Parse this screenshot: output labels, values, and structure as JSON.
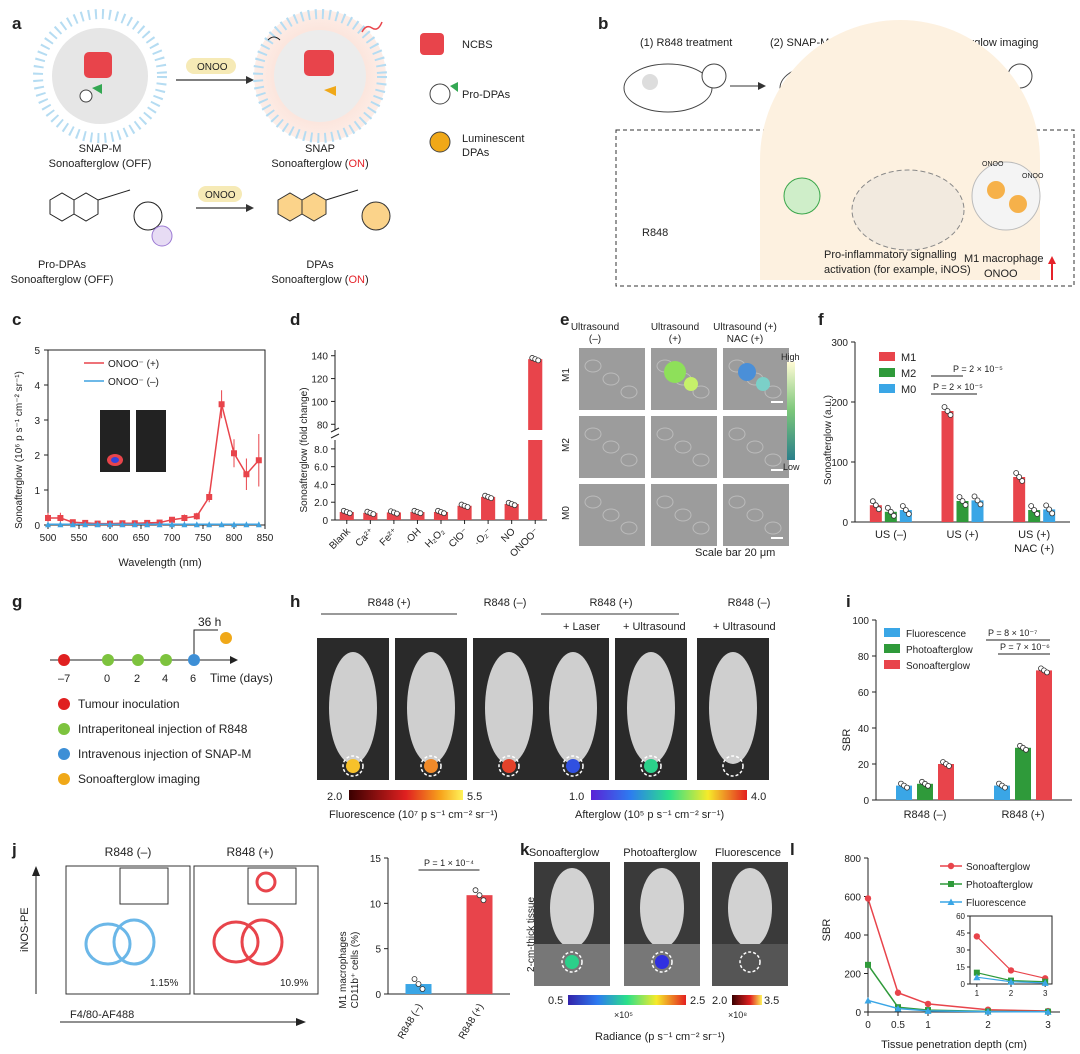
{
  "panel_labels": [
    "a",
    "b",
    "c",
    "d",
    "e",
    "f",
    "g",
    "h",
    "i",
    "j",
    "k",
    "l"
  ],
  "a": {
    "snapm_name": "SNAP-M",
    "snapm_state_prefix": "Sonoafterglow (",
    "snapm_state": "OFF",
    "snap_name": "SNAP",
    "snap_state_prefix": "Sonoafterglow (",
    "snap_state": "ON",
    "onoo": "ONOO",
    "legend": [
      "NCBS",
      "Pro-DPAs",
      "Luminescent",
      "DPAs"
    ],
    "prodpa_name": "Pro-DPAs",
    "prodpa_state": "OFF",
    "dpa_name": "DPAs",
    "dpa_state": "ON",
    "close": ")",
    "colors": {
      "red": "#e8444b",
      "onoo_bg": "#f6eab6",
      "on": "#e5232a"
    }
  },
  "b": {
    "steps": [
      "(1) R848 treatment",
      "(2) SNAP-M injection",
      "(3) Sonoafterglow imaging"
    ],
    "molecule": "R848",
    "signalling": "Pro-inflammatory signalling",
    "activation": "activation (for example, iNOS)",
    "m1": "M1 macrophage",
    "onoo": "ONOO",
    "onoo_dot": "ONOO"
  },
  "c": {
    "ylabel": "Sonoafterglow (10⁶ p s⁻¹ cm⁻² sr⁻¹)",
    "xlabel": "Wavelength (nm)"
  },
  "d": {
    "ylabel": "Sonoafterglow (fold change)"
  },
  "e": {
    "cols": [
      "Ultrasound",
      "Ultrasound",
      "Ultrasound (+)"
    ],
    "cols2": [
      "(–)",
      "(+)",
      "NAC (+)"
    ],
    "rows": [
      "M1",
      "M2",
      "M0"
    ],
    "high": "High",
    "low": "Low",
    "scale": "Scale bar 20 μm"
  },
  "f": {
    "ylabel": "Sonoafterglow (a.u.)"
  },
  "g": {
    "label_36h": "36 h",
    "time": "Time (days)",
    "ticks": [
      "–7",
      "0",
      "2",
      "4",
      "6"
    ],
    "legend": [
      "Tumour inoculation",
      "Intraperitoneal injection of R848",
      "Intravenous injection of SNAP-M",
      "Sonoafterglow imaging"
    ],
    "colors": [
      "#e02020",
      "#7dc33e",
      "#3d8fd6",
      "#f0a818"
    ]
  },
  "h": {
    "group1": "R848 (+)",
    "group2": "R848 (–)",
    "group3": "R848 (+)",
    "group4": "R848 (–)",
    "sub": [
      "+ Laser",
      "+ Ultrasound",
      "+ Ultrasound"
    ],
    "fl_min": "2.0",
    "fl_max": "5.5",
    "fl_label": "Fluorescence (10⁷ p s⁻¹ cm⁻² sr⁻¹)",
    "ag_min": "1.0",
    "ag_max": "4.0",
    "ag_label": "Afterglow (10⁵  p s⁻¹ cm⁻² sr⁻¹)"
  },
  "i": {
    "ylabel": "SBR"
  },
  "j": {
    "titles": [
      "R848 (–)",
      "R848 (+)"
    ],
    "pct": [
      "1.15%",
      "10.9%"
    ],
    "ylabel": "iNOS-PE",
    "xlabel": "F4/80-AF488",
    "bar_ylabel1": "M1 macrophages",
    "bar_ylabel2": "CD11b⁺ cells (%)"
  },
  "k": {
    "titles": [
      "Sonoafterglow",
      "Photoafterglow",
      "Fluorescence"
    ],
    "side": "2-cm-thick tissue",
    "r1_min": "0.5",
    "r1_max": "2.5",
    "r1_exp": "×10⁵",
    "r2_min": "2.0",
    "r2_max": "3.5",
    "r2_exp": "×10⁸",
    "radiance": "Radiance (p s⁻¹ cm⁻² sr⁻¹)"
  },
  "l": {
    "ylabel": "SBR",
    "xlabel": "Tissue penetration depth (cm)"
  },
  "chart_data": [
    {
      "id": "c",
      "type": "line",
      "title": "",
      "xlabel": "Wavelength (nm)",
      "ylabel": "Sonoafterglow (10⁶ p s⁻¹ cm⁻² sr⁻¹)",
      "xlim": [
        500,
        850
      ],
      "ylim": [
        0,
        5
      ],
      "xticks": [
        500,
        550,
        600,
        650,
        700,
        750,
        800,
        850
      ],
      "yticks": [
        0,
        1,
        2,
        3,
        4,
        5
      ],
      "x": [
        500,
        520,
        540,
        560,
        580,
        600,
        620,
        640,
        660,
        680,
        700,
        720,
        740,
        760,
        780,
        800,
        820,
        840
      ],
      "series": [
        {
          "name": "ONOO⁻ (+)",
          "color": "#e8444b",
          "values": [
            0.2,
            0.2,
            0.08,
            0.06,
            0.04,
            0.04,
            0.05,
            0.05,
            0.06,
            0.07,
            0.15,
            0.2,
            0.25,
            0.8,
            3.45,
            2.05,
            1.45,
            1.85
          ],
          "err": [
            0.15,
            0.15,
            0.05,
            0.05,
            0.04,
            0.04,
            0.04,
            0.04,
            0.04,
            0.05,
            0.08,
            0.1,
            0.1,
            0.15,
            0.4,
            0.4,
            0.45,
            0.75
          ]
        },
        {
          "name": "ONOO⁻ (–)",
          "color": "#3fa2e0",
          "values": [
            0.02,
            0.02,
            0.02,
            0.02,
            0.02,
            0.02,
            0.02,
            0.02,
            0.02,
            0.02,
            0.02,
            0.02,
            0.02,
            0.02,
            0.02,
            0.02,
            0.02,
            0.02
          ]
        }
      ]
    },
    {
      "id": "d",
      "type": "bar",
      "ylabel": "Sonoafterglow (fold change)",
      "categories": [
        "Blank",
        "Ca²⁺",
        "Fe²⁺",
        "·OH",
        "H₂O₂",
        "ClO⁻",
        "·O₂⁻",
        "NO",
        "ONOO⁻"
      ],
      "values": [
        0.9,
        0.8,
        0.85,
        0.9,
        0.9,
        1.6,
        2.6,
        1.8,
        137
      ],
      "ylim": [
        0,
        145
      ],
      "yticks": [
        0,
        2.0,
        4.0,
        6.0,
        8.0,
        80,
        100,
        120,
        140
      ],
      "axis_break": [
        9,
        75
      ]
    },
    {
      "id": "f",
      "type": "bar",
      "ylabel": "Sonoafterglow (a.u.)",
      "categories": [
        "US (–)",
        "US (+)",
        "US (+) NAC (+)"
      ],
      "ylim": [
        0,
        300
      ],
      "yticks": [
        0,
        100,
        200,
        300
      ],
      "series": [
        {
          "name": "M1",
          "color": "#e8444b",
          "values": [
            28,
            185,
            75
          ]
        },
        {
          "name": "M2",
          "color": "#2f9a3a",
          "values": [
            17,
            35,
            20
          ]
        },
        {
          "name": "M0",
          "color": "#3aa6e6",
          "values": [
            20,
            36,
            21
          ]
        }
      ],
      "annotations": [
        "P = 2 × 10⁻⁵",
        "P = 2 × 10⁻⁵"
      ]
    },
    {
      "id": "i",
      "type": "bar",
      "ylabel": "SBR",
      "categories": [
        "R848 (–)",
        "R848 (+)"
      ],
      "ylim": [
        0,
        100
      ],
      "yticks": [
        0,
        20,
        40,
        60,
        80,
        100
      ],
      "series": [
        {
          "name": "Fluorescence",
          "color": "#3aa6e6",
          "values": [
            8,
            8
          ]
        },
        {
          "name": "Photoafterglow",
          "color": "#2f9a3a",
          "values": [
            9,
            29
          ]
        },
        {
          "name": "Sonoafterglow",
          "color": "#e8444b",
          "values": [
            20,
            72
          ]
        }
      ],
      "annotations": [
        "P = 8 × 10⁻⁷",
        "P = 7 × 10⁻⁶"
      ]
    },
    {
      "id": "j",
      "type": "bar",
      "ylabel": "M1 macrophages CD11b⁺ cells (%)",
      "categories": [
        "R848 (–)",
        "R848 (+)"
      ],
      "values": [
        1.1,
        10.9
      ],
      "colors": [
        "#3aa6e6",
        "#e8444b"
      ],
      "ylim": [
        0,
        15
      ],
      "yticks": [
        0,
        5,
        10,
        15
      ],
      "annotations": [
        "P = 1 × 10⁻⁴"
      ]
    },
    {
      "id": "l",
      "type": "line",
      "ylabel": "SBR",
      "xlabel": "Tissue penetration depth (cm)",
      "x": [
        0,
        0.5,
        1,
        2,
        3
      ],
      "xlim": [
        0,
        3.2
      ],
      "ylim": [
        0,
        800
      ],
      "xticks": [
        0,
        0.5,
        1,
        2,
        3
      ],
      "yticks": [
        0,
        200,
        400,
        600,
        800
      ],
      "series": [
        {
          "name": "Sonoafterglow",
          "color": "#e8444b",
          "values": [
            590,
            100,
            42,
            12,
            5
          ]
        },
        {
          "name": "Photoafterglow",
          "color": "#2f9a3a",
          "values": [
            245,
            25,
            10,
            3,
            2
          ]
        },
        {
          "name": "Fluorescence",
          "color": "#3aa6e6",
          "values": [
            60,
            18,
            6,
            2,
            1
          ]
        }
      ],
      "inset": {
        "xlim": [
          0.8,
          3.2
        ],
        "ylim": [
          0,
          60
        ],
        "xticks": [
          1,
          2,
          3
        ],
        "yticks": [
          0,
          15,
          30,
          45,
          60
        ]
      }
    }
  ]
}
